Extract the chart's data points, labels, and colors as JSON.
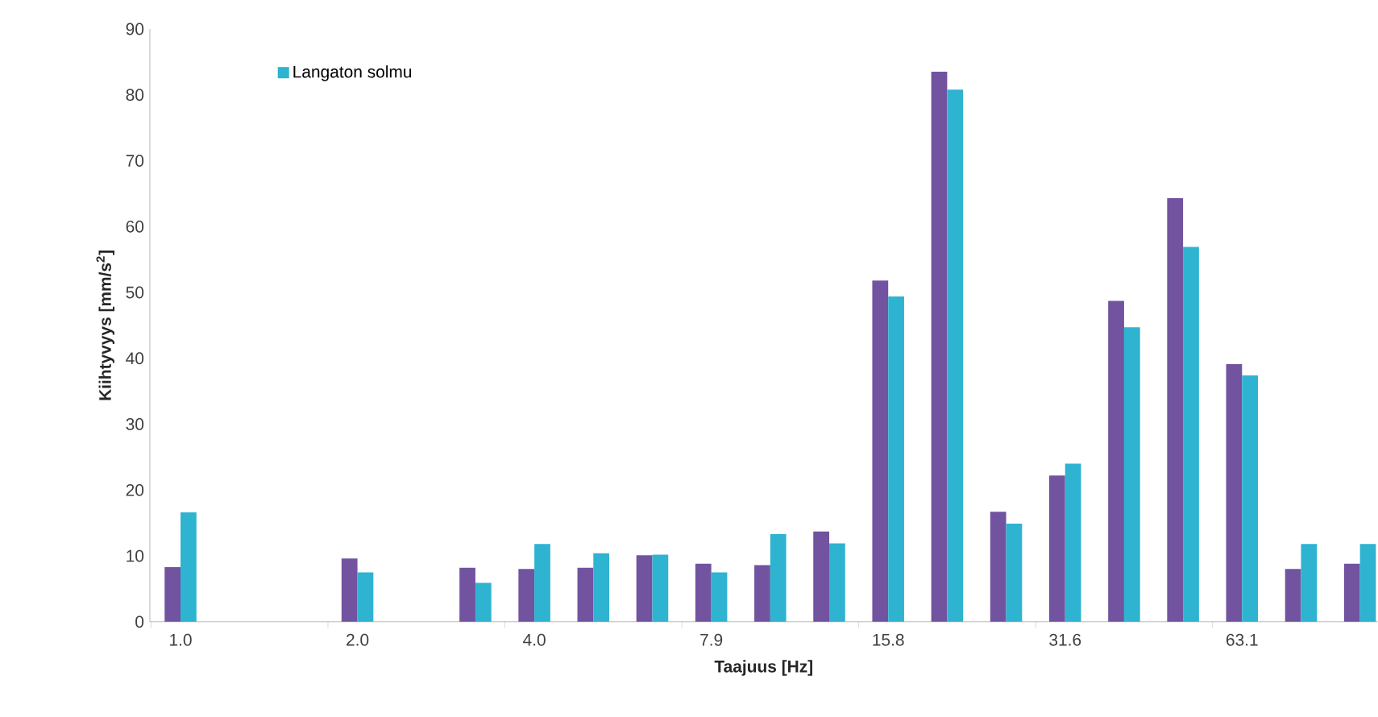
{
  "chart_data": {
    "type": "bar",
    "xlabel": "Taajuus [Hz]",
    "ylabel": "Kiihtyvyys [mm/s$^{2}$]",
    "categories": [
      "1.0",
      null,
      null,
      "2.0",
      null,
      null,
      "4.0",
      null,
      null,
      "7.9",
      null,
      null,
      "15.8",
      null,
      null,
      "31.6",
      null,
      null,
      "63.1",
      null,
      null
    ],
    "series": [
      {
        "color": "#7153a0",
        "values": [
          8.3,
          null,
          null,
          9.6,
          null,
          8.2,
          8.0,
          8.2,
          10.1,
          8.8,
          8.6,
          13.7,
          51.8,
          83.5,
          16.7,
          22.2,
          48.7,
          64.3,
          39.1,
          8.0,
          8.8
        ]
      },
      {
        "name": "Langaton solmu",
        "color": "#2eb3d0",
        "values": [
          16.6,
          null,
          null,
          7.5,
          null,
          5.9,
          11.8,
          10.4,
          10.2,
          7.5,
          13.3,
          11.9,
          49.4,
          80.8,
          14.9,
          24.0,
          44.7,
          56.9,
          37.4,
          11.8,
          11.8
        ]
      }
    ],
    "ylim": [
      0,
      90
    ],
    "yticks": [
      0,
      10,
      20,
      30,
      40,
      50,
      60,
      70,
      80,
      90
    ],
    "grid": false,
    "legend": "top left"
  }
}
